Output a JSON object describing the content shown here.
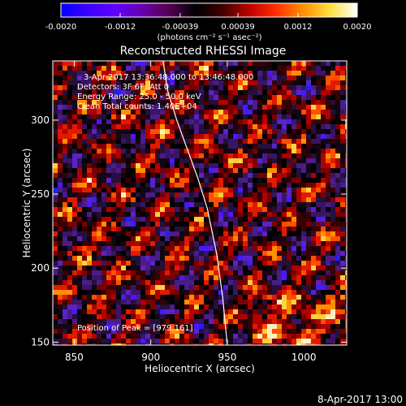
{
  "colorbar": {
    "ticks": [
      "-0.0020",
      "-0.0012",
      "-0.00039",
      "0.00039",
      "0.0012",
      "0.0020"
    ],
    "units": "(photons cm⁻² s⁻¹ asec⁻²)",
    "range": [
      -0.002,
      0.002
    ],
    "colors": [
      "#0000ff",
      "#3c00ff",
      "#6000ff",
      "#6a00b0",
      "#550055",
      "#000000",
      "#400000",
      "#c00000",
      "#ff3000",
      "#ff9000",
      "#ffe040",
      "#ffffff"
    ]
  },
  "title": "Reconstructed RHESSI Image",
  "info": {
    "line1": "3-Apr-2017 13:36:48.000 to 13:46:48.000",
    "line2": "Detectors: 3F 6F, Att 0",
    "line3": "Energy Range: 25.0 - 50.0 keV",
    "line4": "Clean    Total counts: 1.40E+04"
  },
  "peak": "Position of Peak = [979,161]",
  "footer": "8-Apr-2017 13:00",
  "chart_data": {
    "type": "heatmap",
    "title": "Reconstructed RHESSI Image",
    "xlabel": "Heliocentric X (arcsec)",
    "ylabel": "Heliocentric Y (arcsec)",
    "xlim": [
      836,
      1028
    ],
    "ylim": [
      148,
      340
    ],
    "xticks": [
      850,
      900,
      950,
      1000
    ],
    "yticks": [
      150,
      200,
      250,
      300
    ],
    "xtick_labels": [
      "850",
      "900",
      "950",
      "1000"
    ],
    "ytick_labels": [
      "150",
      "200",
      "250",
      "300"
    ],
    "colorbar_range": [
      -0.002,
      0.002
    ],
    "peak_position": [
      979,
      161
    ],
    "limb_curve": {
      "x": [
        908,
        911,
        917,
        924,
        931,
        937,
        943,
        947,
        950
      ],
      "y": [
        340,
        320,
        300,
        280,
        260,
        240,
        210,
        180,
        148
      ]
    }
  }
}
